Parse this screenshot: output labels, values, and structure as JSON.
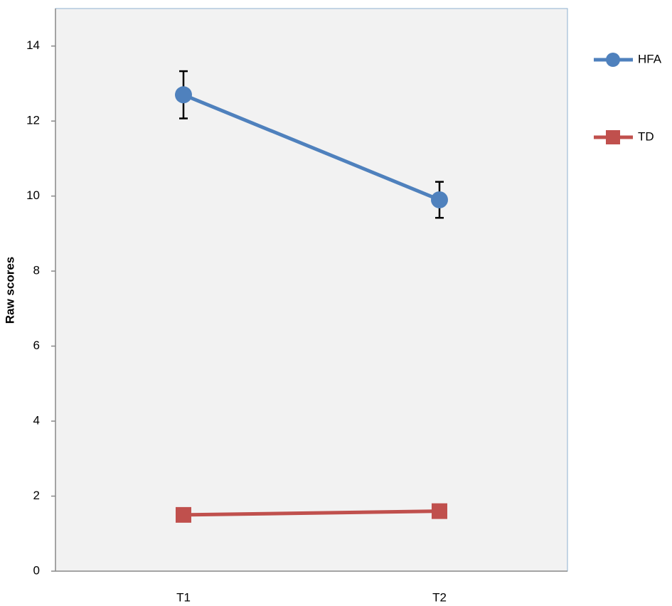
{
  "chart_data": {
    "type": "line",
    "y_label": "Raw scores",
    "categories": [
      "T1",
      "T2"
    ],
    "series": [
      {
        "name": "HFA",
        "color": "#4f81bd",
        "marker": "circle",
        "values": [
          12.7,
          9.9
        ],
        "errors": [
          0.63,
          0.48
        ]
      },
      {
        "name": "TD",
        "color": "#c0504d",
        "marker": "square",
        "values": [
          1.5,
          1.6
        ]
      }
    ],
    "ylim": [
      0,
      15
    ],
    "yticks": [
      0,
      2,
      4,
      6,
      8,
      10,
      12,
      14
    ],
    "grid": false,
    "legend": "right"
  }
}
